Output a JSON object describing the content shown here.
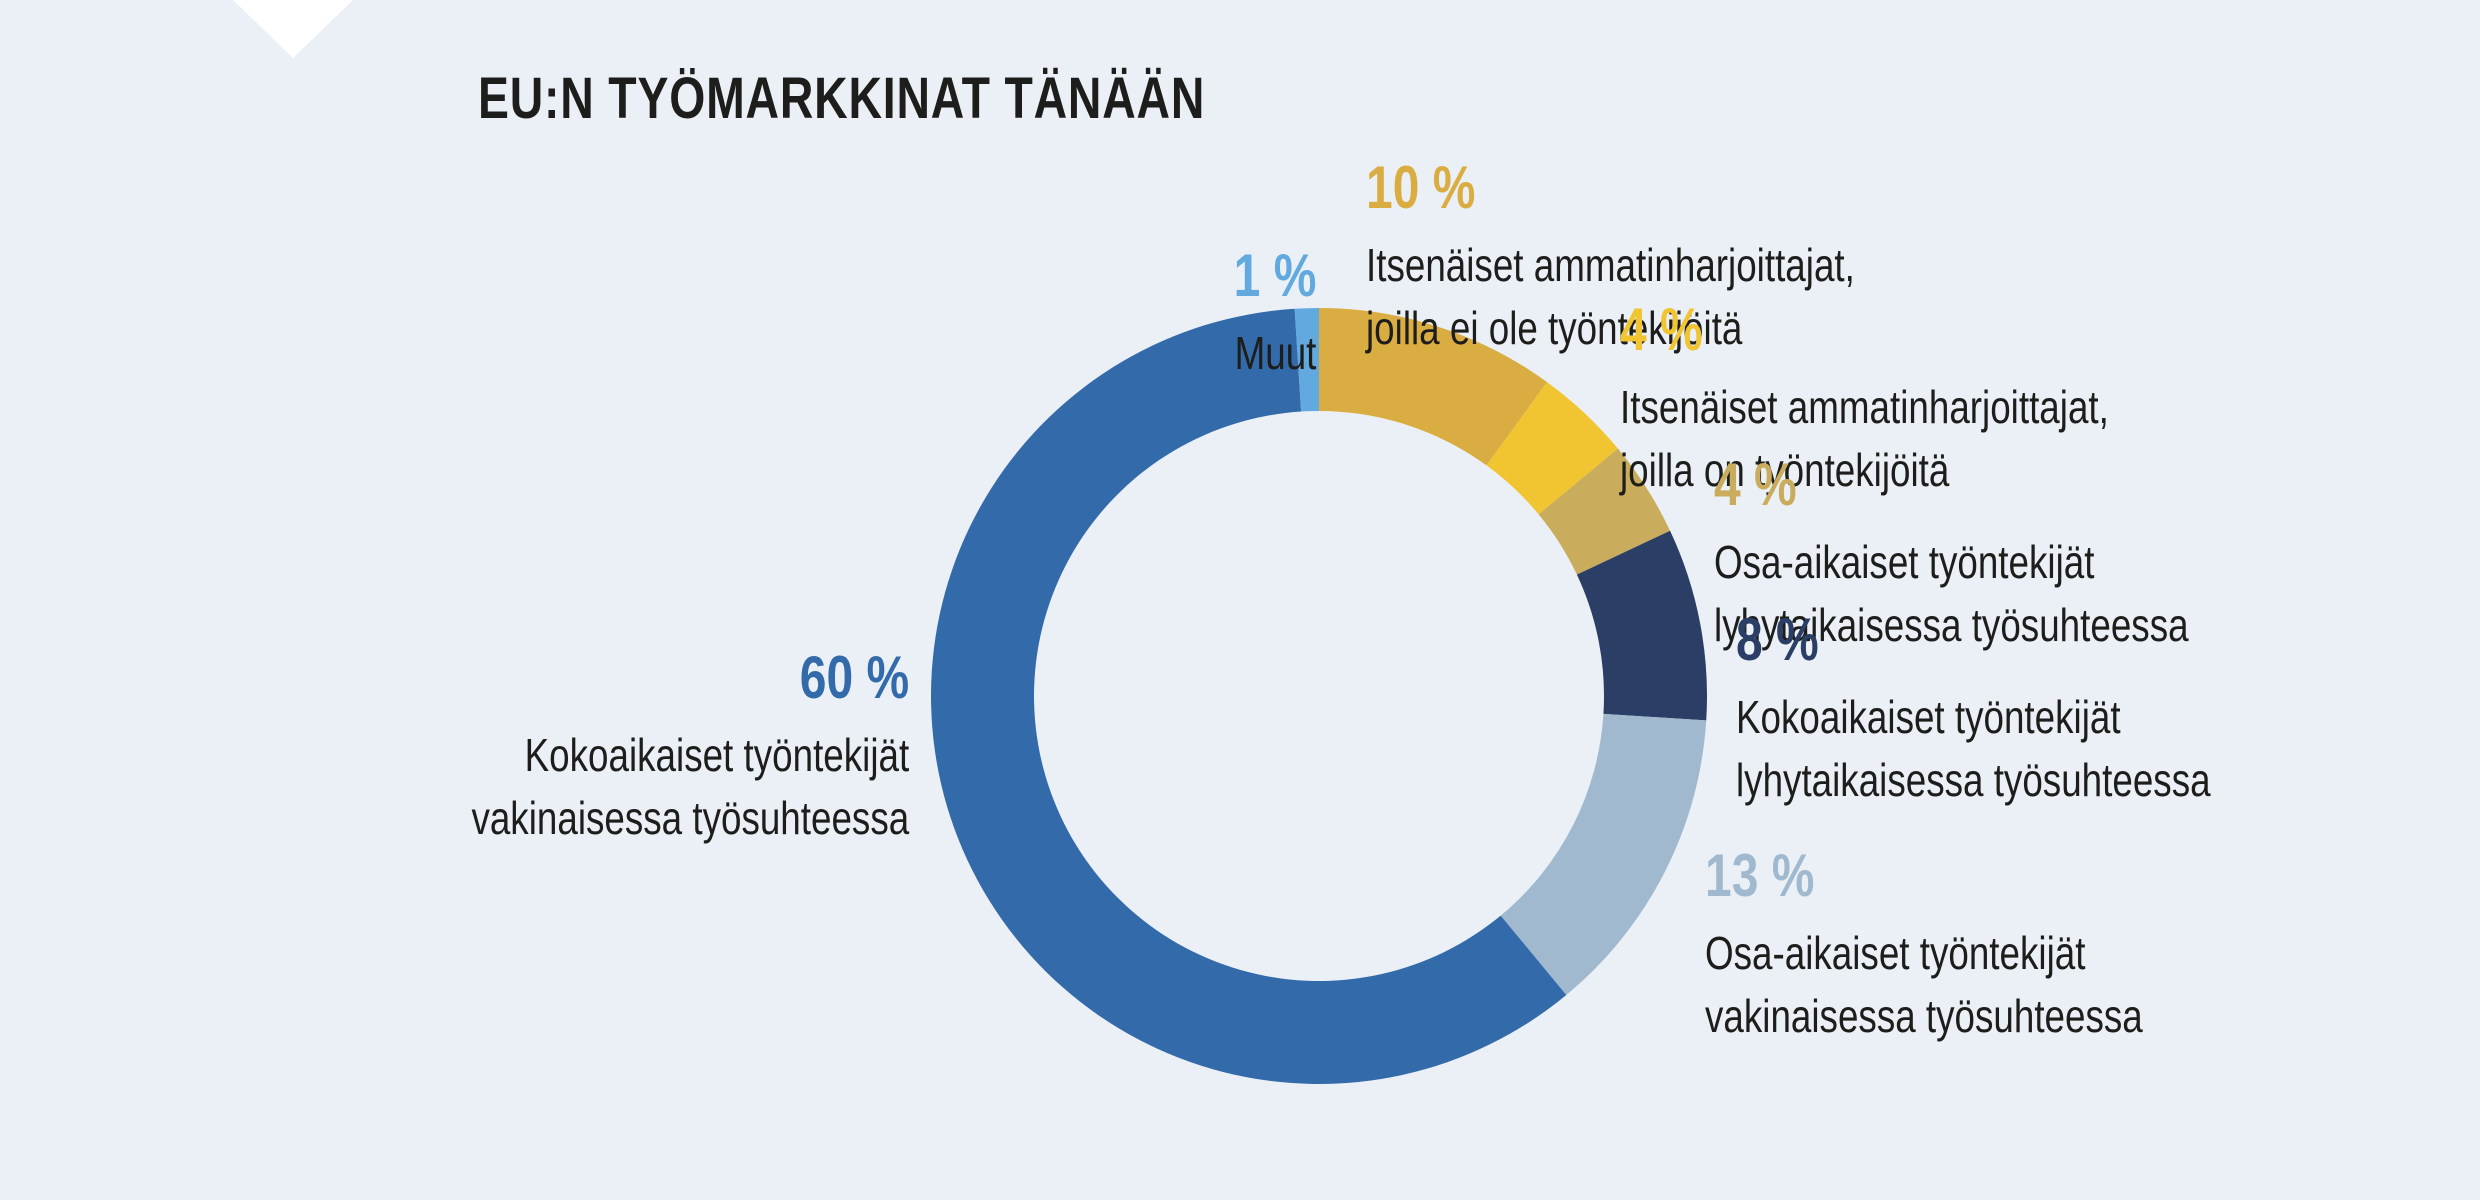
{
  "page": {
    "title": "EU:N TYÖMARKKINAT TÄNÄÄN",
    "background_color": "#EBF0F6",
    "text_color": "#1D1D1B"
  },
  "chart_data": {
    "type": "pie",
    "subtype": "donut",
    "title": "EU:N TYÖMARKKINAT TÄNÄÄN",
    "unit": "percent",
    "total": 100,
    "start_angle_deg": 0,
    "direction": "clockwise",
    "inner_radius_ratio": 0.735,
    "legend_position": "around-chart",
    "segments": [
      {
        "value": 10,
        "value_label": "10 %",
        "color": "#DAAD42",
        "label": "Itsenäiset ammatinharjoittajat, joilla ei ole työntekijöitä",
        "label_lines": [
          "Itsenäiset ammatinharjoittajat,",
          "joilla ei ole työntekijöitä"
        ]
      },
      {
        "value": 4,
        "value_label": "4 %",
        "color": "#F1C531",
        "label": "Itsenäiset ammatinharjoittajat, joilla on työntekijöitä",
        "label_lines": [
          "Itsenäiset ammatinharjoittajat,",
          "joilla on työntekijöitä"
        ]
      },
      {
        "value": 4,
        "value_label": "4 %",
        "color": "#C9AD5C",
        "label": "Osa-aikaiset työntekijät lyhytaikaisessa työsuhteessa",
        "label_lines": [
          "Osa-aikaiset työntekijät",
          "lyhytaikaisessa työsuhteessa"
        ]
      },
      {
        "value": 8,
        "value_label": "8 %",
        "color": "#2A3E66",
        "label": "Kokoaikaiset työntekijät lyhytaikaisessa työsuhteessa",
        "label_lines": [
          "Kokoaikaiset työntekijät",
          "lyhytaikaisessa työsuhteessa"
        ]
      },
      {
        "value": 13,
        "value_label": "13 %",
        "color": "#A1B9CF",
        "label": "Osa-aikaiset työntekijät vakinaisessa työsuhteessa",
        "label_lines": [
          "Osa-aikaiset työntekijät",
          "vakinaisessa työsuhteessa"
        ]
      },
      {
        "value": 60,
        "value_label": "60 %",
        "color": "#336BAA",
        "label": "Kokoaikaiset työntekijät vakinaisessa työsuhteessa",
        "label_lines": [
          "Kokoaikaiset työntekijät",
          "vakinaisessa työsuhteessa"
        ]
      },
      {
        "value": 1,
        "value_label": "1 %",
        "color": "#61A9DE",
        "label": "Muut",
        "label_lines": [
          "Muut"
        ]
      }
    ]
  }
}
